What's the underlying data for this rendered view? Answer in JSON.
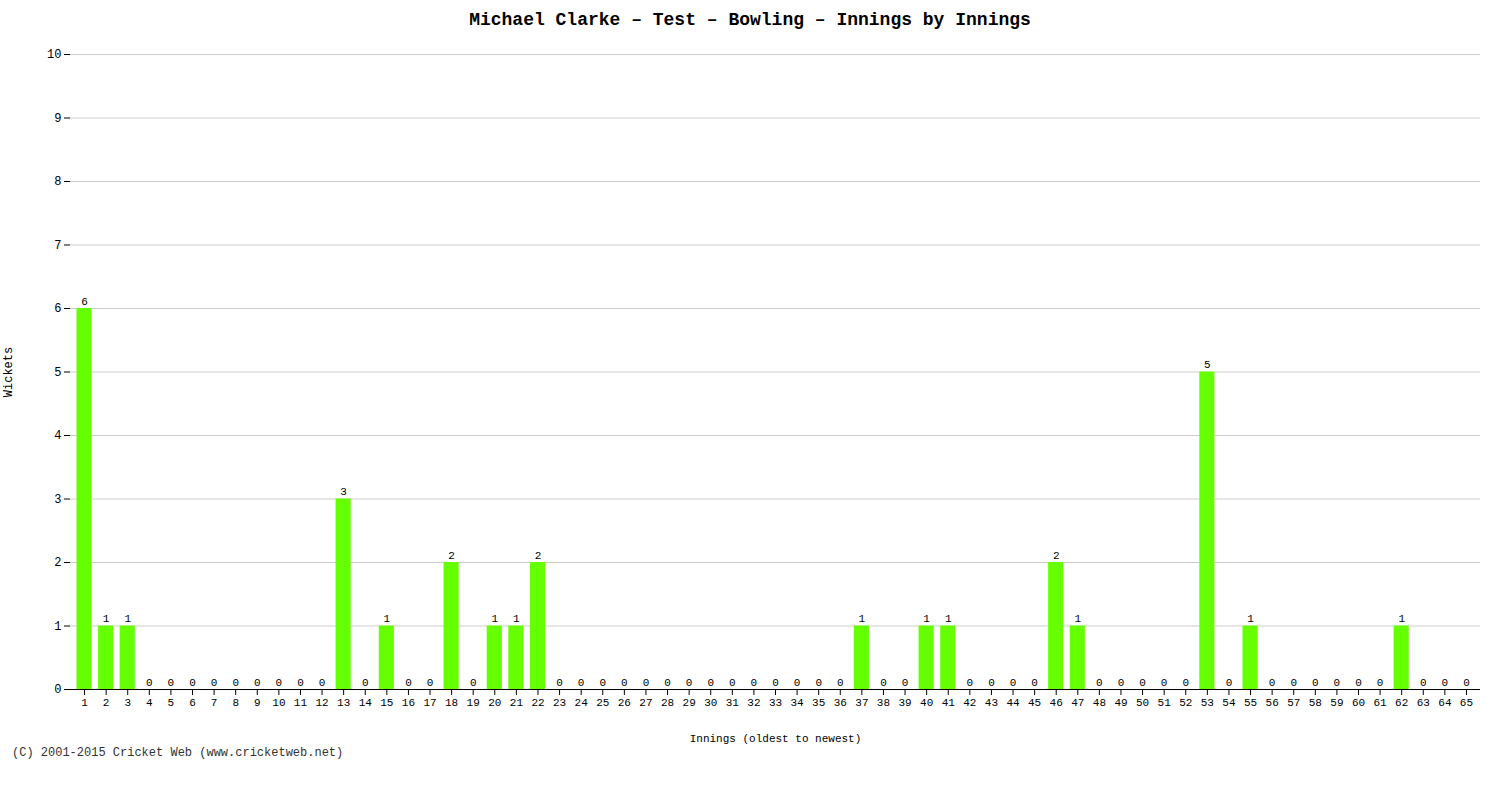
{
  "chart_data": {
    "type": "bar",
    "title": "Michael Clarke – Test – Bowling – Innings by Innings",
    "xlabel": "Innings (oldest to newest)",
    "ylabel": "Wickets",
    "categories": [
      "1",
      "2",
      "3",
      "4",
      "5",
      "6",
      "7",
      "8",
      "9",
      "10",
      "11",
      "12",
      "13",
      "14",
      "15",
      "16",
      "17",
      "18",
      "19",
      "20",
      "21",
      "22",
      "23",
      "24",
      "25",
      "26",
      "27",
      "28",
      "29",
      "30",
      "31",
      "32",
      "33",
      "34",
      "35",
      "36",
      "37",
      "38",
      "39",
      "40",
      "41",
      "42",
      "43",
      "44",
      "45",
      "46",
      "47",
      "48",
      "49",
      "50",
      "51",
      "52",
      "53",
      "54",
      "55",
      "56",
      "57",
      "58",
      "59",
      "60",
      "61",
      "62",
      "63",
      "64",
      "65"
    ],
    "values": [
      6,
      1,
      1,
      0,
      0,
      0,
      0,
      0,
      0,
      0,
      0,
      0,
      3,
      0,
      1,
      0,
      0,
      2,
      0,
      1,
      1,
      2,
      0,
      0,
      0,
      0,
      0,
      0,
      0,
      0,
      0,
      0,
      0,
      0,
      0,
      0,
      1,
      0,
      0,
      1,
      1,
      0,
      0,
      0,
      0,
      2,
      1,
      0,
      0,
      0,
      0,
      0,
      5,
      0,
      1,
      0,
      0,
      0,
      0,
      0,
      0,
      1,
      0,
      0,
      0
    ],
    "color": "#66ff00",
    "ylim": [
      0,
      10
    ],
    "yticks": [
      0,
      1,
      2,
      3,
      4,
      5,
      6,
      7,
      8,
      9,
      10
    ],
    "grid": true,
    "data_labels": true,
    "annotations": [
      "(C) 2001-2015 Cricket Web (www.cricketweb.net)"
    ]
  }
}
